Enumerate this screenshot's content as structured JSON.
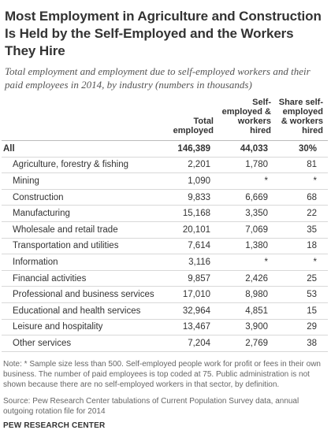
{
  "title": "Most Employment in Agriculture and Construction Is Held by the Self-Employed and the Workers They Hire",
  "subtitle": "Total employment and employment due to self-employed workers and their paid employees in 2014, by industry (numbers in thousands)",
  "chart_data": {
    "type": "table",
    "columns": [
      "",
      "Total employed",
      "Self-employed & workers hired",
      "Share self-employed & workers hired"
    ],
    "rows": [
      {
        "industry": "All",
        "total": "146,389",
        "self": "44,033",
        "share": "30%"
      },
      {
        "industry": "Agriculture, forestry & fishing",
        "total": "2,201",
        "self": "1,780",
        "share": "81"
      },
      {
        "industry": "Mining",
        "total": "1,090",
        "self": "*",
        "share": "*"
      },
      {
        "industry": "Construction",
        "total": "9,833",
        "self": "6,669",
        "share": "68"
      },
      {
        "industry": "Manufacturing",
        "total": "15,168",
        "self": "3,350",
        "share": "22"
      },
      {
        "industry": "Wholesale and retail trade",
        "total": "20,101",
        "self": "7,069",
        "share": "35"
      },
      {
        "industry": "Transportation and utilities",
        "total": "7,614",
        "self": "1,380",
        "share": "18"
      },
      {
        "industry": "Information",
        "total": "3,116",
        "self": "*",
        "share": "*"
      },
      {
        "industry": "Financial activities",
        "total": "9,857",
        "self": "2,426",
        "share": "25"
      },
      {
        "industry": "Professional and business services",
        "total": "17,010",
        "self": "8,980",
        "share": "53"
      },
      {
        "industry": "Educational and health services",
        "total": "32,964",
        "self": "4,851",
        "share": "15"
      },
      {
        "industry": "Leisure and hospitality",
        "total": "13,467",
        "self": "3,900",
        "share": "29"
      },
      {
        "industry": "Other services",
        "total": "7,204",
        "self": "2,769",
        "share": "38"
      }
    ]
  },
  "note": "Note: * Sample size less than 500. Self-employed people work for profit or fees in their own business. The number of paid employees is top coded at 75. Public administration is not shown because there are no self-employed workers in that sector, by definition.",
  "source": "Source: Pew Research Center tabulations of Current Population Survey data, annual outgoing rotation file for 2014",
  "brand": "PEW RESEARCH CENTER"
}
